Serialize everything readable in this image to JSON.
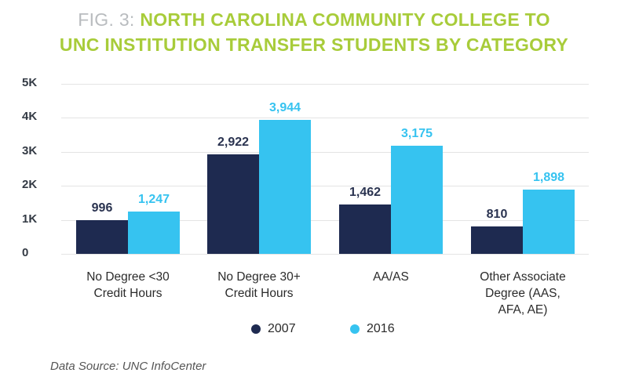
{
  "title": {
    "prefix": "FIG. 3:",
    "line1": "NORTH CAROLINA COMMUNITY COLLEGE TO",
    "line2": "UNC INSTITUTION TRANSFER STUDENTS BY CATEGORY"
  },
  "yaxis": {
    "ticks": [
      "5K",
      "4K",
      "3K",
      "2K",
      "1K",
      "0"
    ]
  },
  "xaxis": {
    "labels": [
      [
        "No Degree <30",
        "Credit Hours"
      ],
      [
        "No Degree 30+",
        "Credit Hours"
      ],
      [
        "AA/AS"
      ],
      [
        "Other Associate",
        "Degree (AAS,",
        "AFA, AE)"
      ]
    ]
  },
  "value_labels": {
    "s2007": [
      "996",
      "2,922",
      "1,462",
      "810"
    ],
    "s2016": [
      "1,247",
      "3,944",
      "3,175",
      "1,898"
    ]
  },
  "legend": {
    "items": [
      {
        "label": "2007",
        "color": "#1e2a50"
      },
      {
        "label": "2016",
        "color": "#36c3f0"
      }
    ]
  },
  "source": "Data Source: UNC InfoCenter",
  "colors": {
    "accent": "#a8cc3a",
    "series2007": "#1e2a50",
    "series2016": "#36c3f0",
    "fig_prefix": "#b9bcbf"
  },
  "chart_data": {
    "type": "bar",
    "title": "FIG. 3: NORTH CAROLINA COMMUNITY COLLEGE TO UNC INSTITUTION TRANSFER STUDENTS BY CATEGORY",
    "categories": [
      "No Degree <30 Credit Hours",
      "No Degree 30+ Credit Hours",
      "AA/AS",
      "Other Associate Degree (AAS, AFA, AE)"
    ],
    "series": [
      {
        "name": "2007",
        "values": [
          996,
          2922,
          1462,
          810
        ]
      },
      {
        "name": "2016",
        "values": [
          1247,
          3944,
          3175,
          1898
        ]
      }
    ],
    "xlabel": "",
    "ylabel": "",
    "ylim": [
      0,
      5000
    ],
    "yticks": [
      "0",
      "1K",
      "2K",
      "3K",
      "4K",
      "5K"
    ],
    "grid": true,
    "legend_position": "bottom",
    "annotations": [
      "Data Source: UNC InfoCenter"
    ]
  }
}
